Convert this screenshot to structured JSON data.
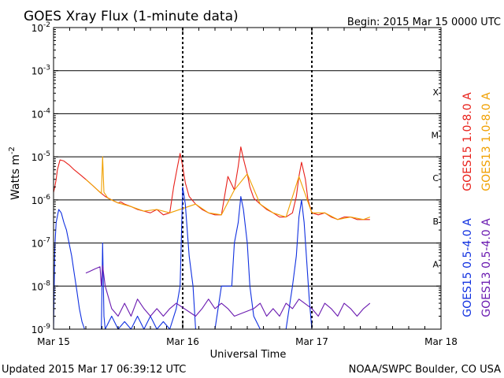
{
  "chart_data": {
    "type": "line",
    "title": "GOES Xray Flux (1-minute data)",
    "begin_label": "Begin:  2015 Mar 15 0000 UTC",
    "ylabel": "Watts m",
    "ylabel_sup": "-2",
    "xlabel": "Universal Time",
    "yscale": "log",
    "ylim": [
      1e-09,
      0.01
    ],
    "xlim": [
      0,
      3
    ],
    "y_ticks": [
      {
        "value": 0.01,
        "label": "10",
        "sup": "-2"
      },
      {
        "value": 0.001,
        "label": "10",
        "sup": "-3"
      },
      {
        "value": 0.0001,
        "label": "10",
        "sup": "-4"
      },
      {
        "value": 1e-05,
        "label": "10",
        "sup": "-5"
      },
      {
        "value": 1e-06,
        "label": "10",
        "sup": "-6"
      },
      {
        "value": 1e-07,
        "label": "10",
        "sup": "-7"
      },
      {
        "value": 1e-08,
        "label": "10",
        "sup": "-8"
      },
      {
        "value": 1e-09,
        "label": "10",
        "sup": "-9"
      }
    ],
    "x_ticks": [
      {
        "value": 0,
        "label": "Mar 15"
      },
      {
        "value": 1,
        "label": "Mar 16"
      },
      {
        "value": 2,
        "label": "Mar 17"
      },
      {
        "value": 3,
        "label": "Mar 18"
      }
    ],
    "flare_classes": [
      {
        "label": "X",
        "value": 0.00032
      },
      {
        "label": "M",
        "value": 3.2e-05
      },
      {
        "label": "C",
        "value": 3.2e-06
      },
      {
        "label": "B",
        "value": 3.2e-07
      },
      {
        "label": "A",
        "value": 3.2e-08
      }
    ],
    "grid": true,
    "legend_position": "right",
    "series": [
      {
        "name": "GOES15 1.0-8.0 A",
        "color": "#e8201a",
        "x": [
          0.0,
          0.01,
          0.02,
          0.03,
          0.05,
          0.08,
          0.12,
          0.16,
          0.2,
          0.25,
          0.3,
          0.35,
          0.4,
          0.45,
          0.5,
          0.52,
          0.55,
          0.6,
          0.65,
          0.7,
          0.75,
          0.8,
          0.85,
          0.9,
          0.93,
          0.96,
          0.98,
          1.0,
          1.02,
          1.05,
          1.1,
          1.15,
          1.2,
          1.25,
          1.3,
          1.35,
          1.4,
          1.43,
          1.45,
          1.47,
          1.5,
          1.52,
          1.55,
          1.6,
          1.65,
          1.7,
          1.75,
          1.8,
          1.85,
          1.88,
          1.9,
          1.92,
          1.95,
          1.97,
          2.0,
          2.05,
          2.1,
          2.15,
          2.2,
          2.25,
          2.3,
          2.35,
          2.4,
          2.45
        ],
        "y": [
          1.5e-06,
          2e-06,
          3e-06,
          5e-06,
          8.5e-06,
          8e-06,
          6.5e-06,
          5e-06,
          4e-06,
          3e-06,
          2.2e-06,
          1.6e-06,
          1.2e-06,
          1e-06,
          8.5e-07,
          9e-07,
          8e-07,
          7e-07,
          6e-07,
          5.5e-07,
          5e-07,
          6e-07,
          4.5e-07,
          5e-07,
          2e-06,
          6e-06,
          1.2e-05,
          6e-06,
          2.5e-06,
          1.2e-06,
          8e-07,
          6e-07,
          5e-07,
          4.5e-07,
          4.5e-07,
          3.5e-06,
          1.7e-06,
          6e-06,
          1.7e-05,
          9e-06,
          4e-06,
          2e-06,
          1.1e-06,
          8e-07,
          6e-07,
          5e-07,
          4e-07,
          4e-07,
          5e-07,
          1.2e-06,
          3.5e-06,
          7.5e-06,
          3e-06,
          1e-06,
          5e-07,
          4.5e-07,
          5e-07,
          4e-07,
          3.5e-07,
          4e-07,
          4e-07,
          3.5e-07,
          3.5e-07,
          3.5e-07
        ]
      },
      {
        "name": "GOES13 1.0-8.0 A",
        "color": "#f0a000",
        "x": [
          0.25,
          0.3,
          0.35,
          0.37,
          0.38,
          0.39,
          0.42,
          0.45,
          0.5,
          0.6,
          0.7,
          0.8,
          0.9,
          1.1,
          1.2,
          1.3,
          1.4,
          1.5,
          1.6,
          1.7,
          1.8,
          1.9,
          2.0,
          2.1,
          2.2,
          2.3,
          2.4,
          2.45
        ],
        "y": [
          3e-06,
          2.2e-06,
          1.6e-06,
          1.4e-06,
          1e-05,
          1.5e-06,
          1.1e-06,
          1e-06,
          8.5e-07,
          7e-07,
          5.5e-07,
          6e-07,
          5e-07,
          8e-07,
          5e-07,
          4.5e-07,
          1.7e-06,
          4e-06,
          8e-07,
          5e-07,
          4e-07,
          3.5e-06,
          5e-07,
          5e-07,
          3.5e-07,
          4e-07,
          3.5e-07,
          4e-07
        ]
      },
      {
        "name": "GOES15 0.5-4.0 A",
        "color": "#1030e0",
        "x": [
          0.0,
          0.01,
          0.02,
          0.04,
          0.06,
          0.08,
          0.1,
          0.12,
          0.14,
          0.16,
          0.18,
          0.2,
          0.22,
          0.24,
          0.25,
          0.26,
          0.3,
          0.35,
          0.37,
          0.38,
          0.39,
          0.4,
          0.45,
          0.5,
          0.55,
          0.6,
          0.65,
          0.7,
          0.75,
          0.8,
          0.85,
          0.9,
          0.95,
          0.98,
          1.0,
          1.02,
          1.05,
          1.08,
          1.1,
          1.15,
          1.2,
          1.25,
          1.3,
          1.35,
          1.38,
          1.4,
          1.43,
          1.45,
          1.47,
          1.5,
          1.52,
          1.55,
          1.6,
          1.65,
          1.7,
          1.75,
          1.8,
          1.85,
          1.88,
          1.9,
          1.92,
          1.94,
          1.96,
          1.98,
          2.0,
          2.05,
          2.1,
          2.15,
          2.2,
          2.25,
          2.3
        ],
        "y": [
          1e-09,
          8e-08,
          3e-07,
          6e-07,
          5e-07,
          3e-07,
          2e-07,
          1e-07,
          5e-08,
          2e-08,
          8e-09,
          3e-09,
          1.5e-09,
          1e-09,
          1e-09,
          1e-09,
          1e-09,
          1e-09,
          1e-09,
          1e-07,
          2e-09,
          1e-09,
          2e-09,
          1e-09,
          1.5e-09,
          1e-09,
          2e-09,
          1e-09,
          2e-09,
          1e-09,
          1.5e-09,
          1e-09,
          3e-09,
          1e-08,
          2e-06,
          8e-07,
          5e-08,
          1e-08,
          1e-09,
          1e-09,
          1e-09,
          1e-09,
          1e-08,
          1e-08,
          1e-08,
          1e-07,
          3e-07,
          1.2e-06,
          6e-07,
          1e-07,
          1e-08,
          2e-09,
          1e-09,
          1e-09,
          1e-09,
          1e-09,
          1e-09,
          1e-08,
          5e-08,
          4e-07,
          1e-06,
          3e-07,
          4e-08,
          5e-09,
          1e-09,
          1e-09,
          1e-09,
          1e-09,
          1e-09,
          1e-09,
          1e-09
        ]
      },
      {
        "name": "GOES13 0.5-4.0 A",
        "color": "#6a1ab0",
        "x": [
          0.25,
          0.28,
          0.32,
          0.36,
          0.37,
          0.38,
          0.4,
          0.45,
          0.5,
          0.55,
          0.6,
          0.65,
          0.7,
          0.75,
          0.8,
          0.85,
          0.9,
          0.95,
          1.1,
          1.15,
          1.2,
          1.25,
          1.3,
          1.35,
          1.4,
          1.55,
          1.6,
          1.65,
          1.7,
          1.75,
          1.8,
          1.85,
          1.9,
          2.0,
          2.05,
          2.1,
          2.15,
          2.2,
          2.25,
          2.3,
          2.35,
          2.4,
          2.45
        ],
        "y": [
          2e-08,
          2.2e-08,
          2.5e-08,
          2.8e-08,
          1e-08,
          3e-08,
          1e-08,
          3e-09,
          2e-09,
          4e-09,
          2e-09,
          5e-09,
          3e-09,
          2e-09,
          3e-09,
          2e-09,
          3e-09,
          4e-09,
          2e-09,
          3e-09,
          5e-09,
          3e-09,
          4e-09,
          3e-09,
          2e-09,
          3e-09,
          4e-09,
          2e-09,
          3e-09,
          2e-09,
          4e-09,
          3e-09,
          5e-09,
          3e-09,
          2e-09,
          4e-09,
          3e-09,
          2e-09,
          4e-09,
          3e-09,
          2e-09,
          3e-09,
          4e-09
        ]
      }
    ]
  },
  "footer": {
    "updated": "Updated 2015 Mar 17 06:39:12 UTC",
    "credit": "NOAA/SWPC Boulder, CO USA"
  }
}
